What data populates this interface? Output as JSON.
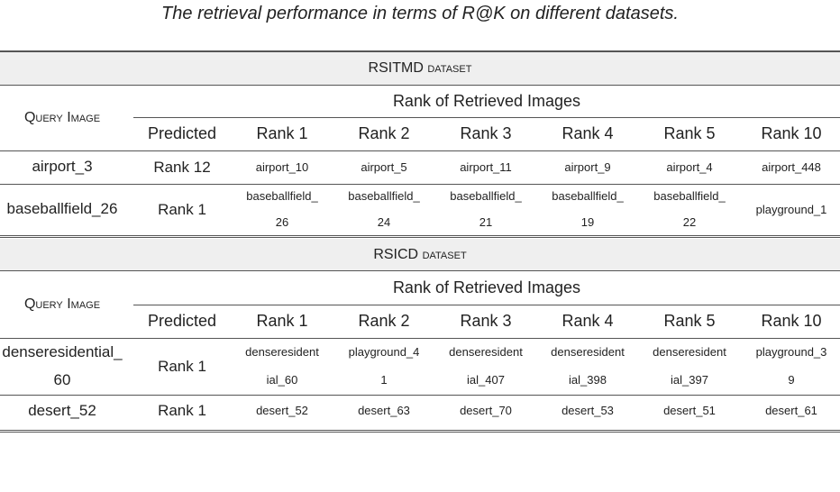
{
  "caption": "The retrieval performance in terms of R@K on different datasets.",
  "headers": {
    "query_image": "Query Image",
    "rank_of_retrieved": "Rank of Retrieved Images",
    "columns": [
      "Predicted",
      "Rank 1",
      "Rank 2",
      "Rank 3",
      "Rank 4",
      "Rank 5",
      "Rank 10"
    ]
  },
  "sections": [
    {
      "title": "RSITMD",
      "title_suffix": "dataset",
      "rows": [
        {
          "query": [
            "airport_3"
          ],
          "predicted": "Rank 12",
          "ranks": [
            [
              "airport_10"
            ],
            [
              "airport_5"
            ],
            [
              "airport_11"
            ],
            [
              "airport_9"
            ],
            [
              "airport_4"
            ],
            [
              "airport_448"
            ]
          ]
        },
        {
          "query": [
            "baseballfield_26"
          ],
          "predicted": "Rank 1",
          "ranks": [
            [
              "baseballfield_",
              "26"
            ],
            [
              "baseballfield_",
              "24"
            ],
            [
              "baseballfield_",
              "21"
            ],
            [
              "baseballfield_",
              "19"
            ],
            [
              "baseballfield_",
              "22"
            ],
            [
              "playground_1"
            ]
          ]
        }
      ]
    },
    {
      "title": "RSICD",
      "title_suffix": "dataset",
      "rows": [
        {
          "query": [
            "denseresidential_",
            "60"
          ],
          "predicted": "Rank 1",
          "ranks": [
            [
              "denseresident",
              "ial_60"
            ],
            [
              "playground_4",
              "1"
            ],
            [
              "denseresident",
              "ial_407"
            ],
            [
              "denseresident",
              "ial_398"
            ],
            [
              "denseresident",
              "ial_397"
            ],
            [
              "playground_3",
              "9"
            ]
          ]
        },
        {
          "query": [
            "desert_52"
          ],
          "predicted": "Rank 1",
          "ranks": [
            [
              "desert_52"
            ],
            [
              "desert_63"
            ],
            [
              "desert_70"
            ],
            [
              "desert_53"
            ],
            [
              "desert_51"
            ],
            [
              "desert_61"
            ]
          ]
        }
      ]
    }
  ]
}
